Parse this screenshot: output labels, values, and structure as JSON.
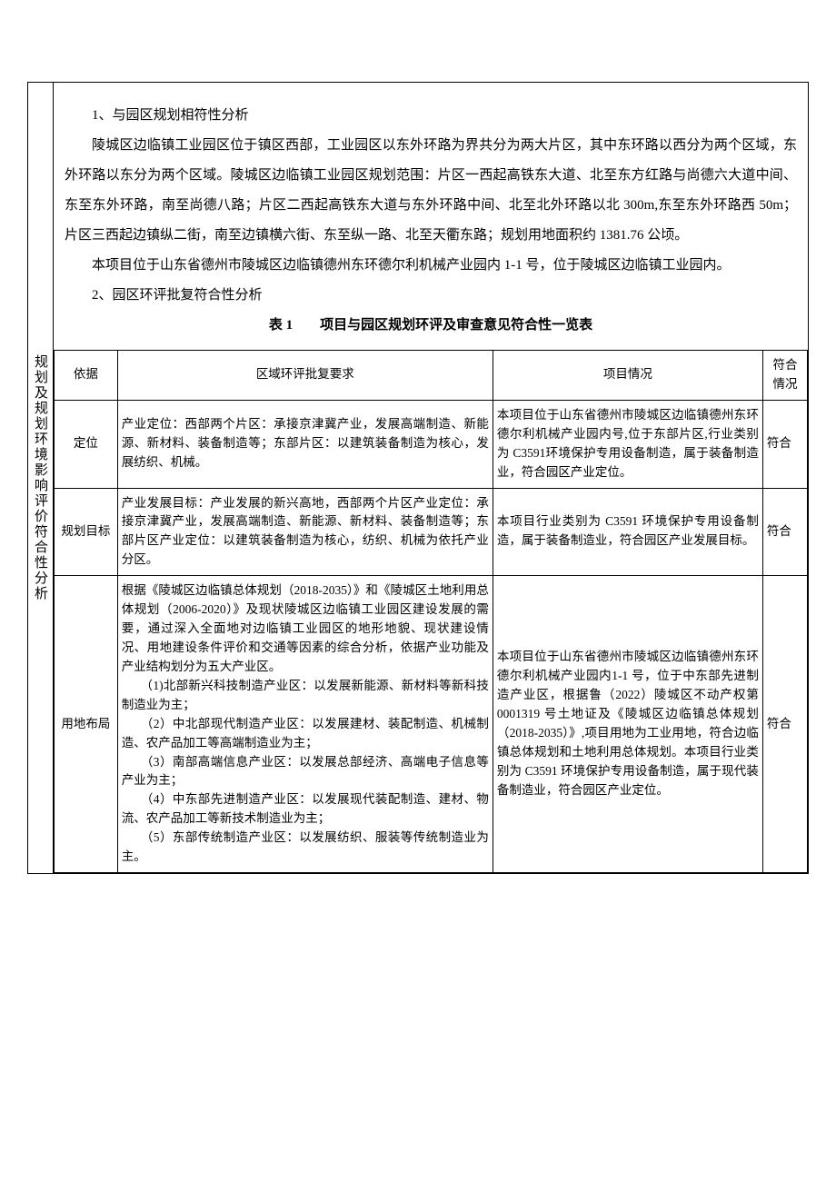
{
  "side_heading": "规划及规划环境影响评价符合性分析",
  "section1_title": "1、与园区规划相符性分析",
  "para1": "陵城区边临镇工业园区位于镇区西部，工业园区以东外环路为界共分为两大片区，其中东环路以西分为两个区域，东外环路以东分为两个区域。陵城区边临镇工业园区规划范围：片区一西起高铁东大道、北至东方红路与尚德六大道中间、东至东外环路，南至尚德八路；片区二西起高铁东大道与东外环路中间、北至北外环路以北 300m,东至东外环路西 50m；片区三西起边镇纵二街，南至边镇横六街、东至纵一路、北至天衢东路；规划用地面积约 1381.76 公顷。",
  "para2": "本项目位于山东省德州市陵城区边临镇德州东环德尔利机械产业园内 1-1 号，位于陵城区边临镇工业园内。",
  "section2_title": "2、园区环评批复符合性分析",
  "table_caption_label": "表 1",
  "table_caption_title": "项目与园区规划环评及审查意见符合性一览表",
  "headers": {
    "c0": "依据",
    "c1": "区域环评批复要求",
    "c2": "项目情况",
    "c3": "符合情况"
  },
  "rows": [
    {
      "basis": "定位",
      "req": "产业定位：西部两个片区：承接京津冀产业，发展高端制造、新能源、新材料、装备制造等；东部片区：以建筑装备制造为核心，发展纺织、机械。",
      "proj": "本项目位于山东省德州市陵城区边临镇德州东环德尔利机械产业园内号,位于东部片区,行业类别为 C3591环境保护专用设备制造，属于装备制造业，符合园区产业定位。",
      "res": "符合"
    },
    {
      "basis": "规划目标",
      "req": "产业发展目标：产业发展的新兴高地，西部两个片区产业定位：承接京津冀产业，发展高端制造、新能源、新材料、装备制造等；东部片区产业定位：以建筑装备制造为核心，纺织、机械为依托产业分区。",
      "proj": "本项目行业类别为 C3591 环境保护专用设备制造，属于装备制造业，符合园区产业发展目标。",
      "res": "符合"
    },
    {
      "basis": "用地布局",
      "req": "根据《陵城区边临镇总体规划（2018-2035）》和《陵城区土地利用总体规划（2006-2020）》及现状陵城区边临镇工业园区建设发展的需要，通过深入全面地对边临镇工业园区的地形地貌、现状建设情况、用地建设条件评价和交通等因素的综合分析，依据产业功能及产业结构划分为五大产业区。\n　　（1)北部新兴科技制造产业区：以发展新能源、新材料等新科技制造业为主；\n　　（2）中北部现代制造产业区：以发展建材、装配制造、机械制造、农产品加工等高端制造业为主；\n　　（3）南部高端信息产业区：以发展总部经济、高端电子信息等产业为主；\n　　（4）中东部先进制造产业区：以发展现代装配制造、建材、物流、农产品加工等新技术制造业为主；\n　　（5）东部传统制造产业区：以发展纺织、服装等传统制造业为主。",
      "proj": "本项目位于山东省德州市陵城区边临镇德州东环德尔利机械产业园内1-1 号，位于中东部先进制造产业区，根据鲁（2022）陵城区不动产权第0001319 号土地证及《陵城区边临镇总体规划（2018-2035）》,项目用地为工业用地，符合边临镇总体规划和土地利用总体规划。本项目行业类别为 C3591 环境保护专用设备制造，属于现代装备制造业，符合园区产业定位。",
      "res": "符合"
    }
  ]
}
